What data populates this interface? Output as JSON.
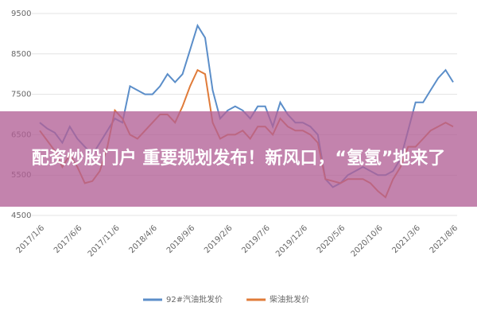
{
  "chart_data": {
    "type": "line",
    "categories": [
      "2017/1/6",
      null,
      null,
      null,
      null,
      "2017/6/6",
      null,
      null,
      null,
      null,
      "2017/11/6",
      null,
      null,
      null,
      null,
      "2018/4/6",
      null,
      null,
      null,
      null,
      "2018/9/6",
      null,
      null,
      null,
      null,
      "2019/2/6",
      null,
      null,
      null,
      null,
      "2019/7/6",
      null,
      null,
      null,
      null,
      "2019/12/6",
      null,
      null,
      null,
      null,
      "2020/5/6",
      null,
      null,
      null,
      null,
      "2020/10/6",
      null,
      null,
      null,
      null,
      "2021/3/6",
      null,
      null,
      null,
      null,
      "2021/8/6"
    ],
    "series": [
      {
        "name": "92#汽油批发价",
        "color": "#5b8ec9",
        "values": [
          6800,
          6650,
          6550,
          6300,
          6700,
          6400,
          6200,
          6000,
          6300,
          6600,
          6900,
          6800,
          7700,
          7600,
          7500,
          7500,
          7700,
          8000,
          7800,
          8000,
          8600,
          9200,
          8900,
          7600,
          6900,
          7100,
          7200,
          7100,
          6900,
          7200,
          7200,
          6700,
          7300,
          7000,
          6800,
          6800,
          6700,
          6500,
          5400,
          5200,
          5300,
          5500,
          5600,
          5700,
          5600,
          5500,
          5500,
          5600,
          5900,
          6600,
          7300,
          7300,
          7600,
          7900,
          8100,
          7800
        ]
      },
      {
        "name": "柴油批发价",
        "color": "#e07b39",
        "values": [
          6600,
          6350,
          6100,
          5700,
          6000,
          5700,
          5300,
          5350,
          5600,
          6200,
          7100,
          6900,
          6500,
          6400,
          6600,
          6800,
          7000,
          7000,
          6800,
          7200,
          7700,
          8100,
          8000,
          6800,
          6400,
          6500,
          6500,
          6600,
          6400,
          6700,
          6700,
          6500,
          6900,
          6700,
          6600,
          6600,
          6500,
          6300,
          5400,
          5350,
          5300,
          5400,
          5400,
          5400,
          5300,
          5100,
          4950,
          5400,
          5700,
          6200,
          6200,
          6400,
          6600,
          6700,
          6800,
          6700
        ]
      }
    ],
    "ylim": [
      4500,
      9500
    ],
    "yticks": [
      4500,
      5500,
      6500,
      7500,
      8500,
      9500
    ],
    "grid": true,
    "legend": "bottom"
  },
  "overlay_text": "配资炒股门户 重要规划发布！新风口，“氢氢”地来了"
}
